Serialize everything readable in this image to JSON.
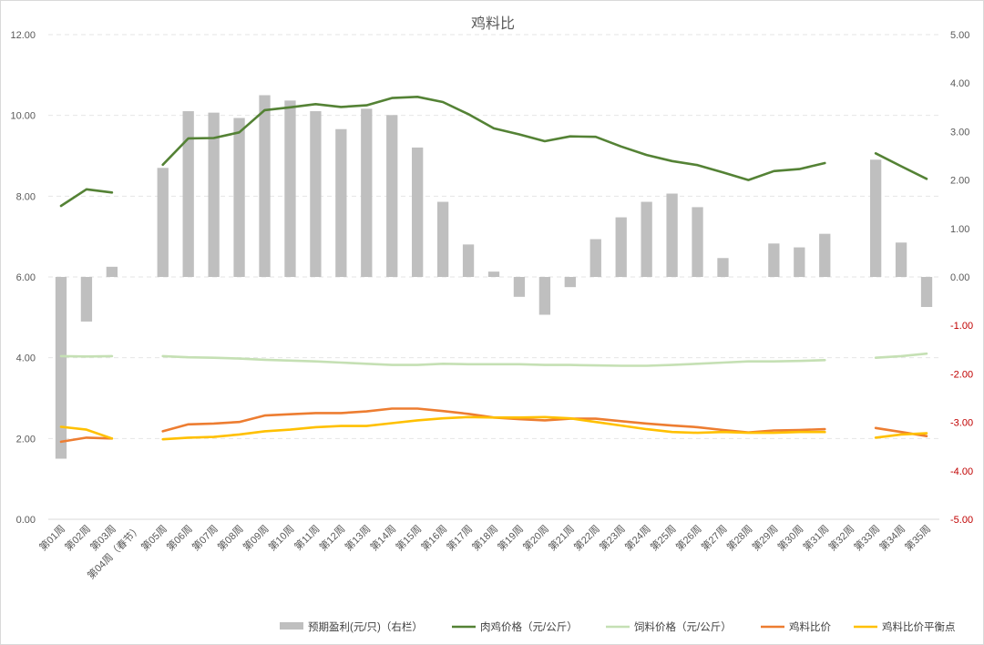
{
  "chart_data": {
    "type": "bar",
    "title": "鸡料比",
    "categories": [
      "第01周",
      "第02周",
      "第03周",
      "第04周（春节）",
      "第05周",
      "第06周",
      "第07周",
      "第08周",
      "第09周",
      "第10周",
      "第11周",
      "第12周",
      "第13周",
      "第14周",
      "第15周",
      "第16周",
      "第17周",
      "第18周",
      "第19周",
      "第20周",
      "第21周",
      "第22周",
      "第23周",
      "第24周",
      "第25周",
      "第26周",
      "第27周",
      "第28周",
      "第29周",
      "第30周",
      "第31周",
      "第32周",
      "第33周",
      "第34周",
      "第35周"
    ],
    "left_axis": {
      "ylim": [
        0,
        12
      ],
      "ticks": [
        "0.00",
        "2.00",
        "4.00",
        "6.00",
        "8.00",
        "10.00",
        "12.00"
      ]
    },
    "right_axis": {
      "ylim": [
        -5,
        5
      ],
      "ticks": [
        "-5.00",
        "-4.00",
        "-3.00",
        "-2.00",
        "-1.00",
        "0.00",
        "1.00",
        "2.00",
        "3.00",
        "4.00",
        "5.00"
      ]
    },
    "grid": true,
    "legend_position": "bottom",
    "series": [
      {
        "name": "预期盈利(元/只)（右栏）",
        "type": "bar",
        "axis": "right",
        "color": "#bfbfbf",
        "values": [
          -3.75,
          -0.92,
          0.21,
          null,
          2.25,
          3.42,
          3.39,
          3.28,
          3.75,
          3.64,
          3.42,
          3.05,
          3.47,
          3.34,
          2.67,
          1.55,
          0.67,
          0.11,
          -0.41,
          -0.78,
          -0.21,
          0.78,
          1.23,
          1.55,
          1.72,
          1.44,
          0.39,
          null,
          0.69,
          0.61,
          0.89,
          null,
          2.42,
          0.71,
          -0.62
        ]
      },
      {
        "name": "肉鸡价格（元/公斤）",
        "type": "line",
        "axis": "left",
        "color": "#548235",
        "values": [
          7.76,
          8.17,
          8.09,
          null,
          8.78,
          9.43,
          9.44,
          9.58,
          10.13,
          10.2,
          10.28,
          10.21,
          10.25,
          10.43,
          10.46,
          10.33,
          10.03,
          9.68,
          9.53,
          9.36,
          9.48,
          9.47,
          9.23,
          9.02,
          8.87,
          8.77,
          8.59,
          8.4,
          8.62,
          8.67,
          8.82,
          null,
          9.06,
          8.74,
          8.43
        ]
      },
      {
        "name": "饲料价格（元/公斤）",
        "type": "line",
        "axis": "left",
        "color": "#c5e0b4",
        "values": [
          4.04,
          4.03,
          4.04,
          null,
          4.04,
          4.01,
          4.0,
          3.98,
          3.95,
          3.93,
          3.91,
          3.88,
          3.85,
          3.82,
          3.82,
          3.85,
          3.84,
          3.84,
          3.84,
          3.82,
          3.82,
          3.81,
          3.8,
          3.8,
          3.82,
          3.85,
          3.88,
          3.91,
          3.91,
          3.92,
          3.94,
          null,
          4.0,
          4.04,
          4.1
        ]
      },
      {
        "name": "鸡料比价",
        "type": "line",
        "axis": "left",
        "color": "#ed7d31",
        "values": [
          1.92,
          2.02,
          2.0,
          null,
          2.18,
          2.35,
          2.37,
          2.41,
          2.57,
          2.6,
          2.63,
          2.63,
          2.67,
          2.74,
          2.74,
          2.68,
          2.61,
          2.52,
          2.48,
          2.45,
          2.49,
          2.49,
          2.43,
          2.37,
          2.32,
          2.28,
          2.21,
          2.15,
          2.2,
          2.21,
          2.23,
          null,
          2.26,
          2.16,
          2.06
        ]
      },
      {
        "name": "鸡料比价平衡点",
        "type": "line",
        "axis": "left",
        "color": "#ffc000",
        "values": [
          2.29,
          2.22,
          2.0,
          null,
          1.98,
          2.02,
          2.04,
          2.1,
          2.18,
          2.22,
          2.28,
          2.31,
          2.31,
          2.38,
          2.45,
          2.5,
          2.53,
          2.52,
          2.52,
          2.53,
          2.5,
          2.41,
          2.32,
          2.23,
          2.16,
          2.14,
          2.16,
          2.14,
          2.14,
          2.16,
          2.16,
          null,
          2.02,
          2.1,
          2.13
        ]
      }
    ]
  }
}
